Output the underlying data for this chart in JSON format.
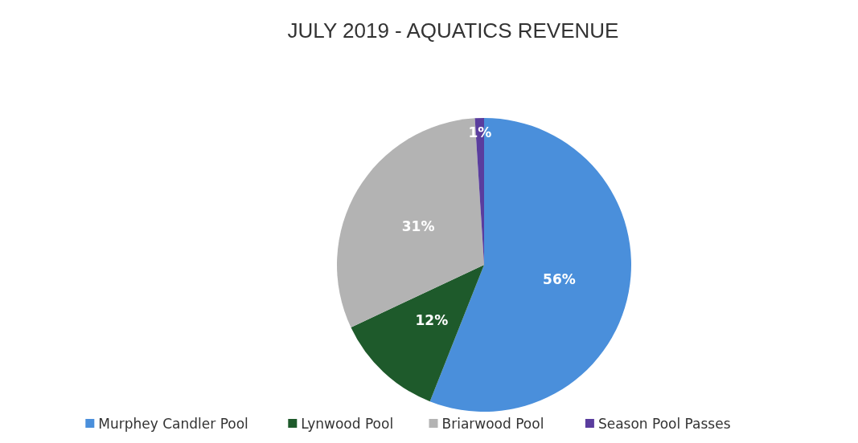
{
  "chart_data": {
    "type": "pie",
    "title": "JULY 2019 - AQUATICS REVENUE",
    "categories": [
      "Murphey Candler Pool",
      "Lynwood Pool",
      "Briarwood Pool",
      "Season Pool Passes"
    ],
    "values": [
      56,
      12,
      31,
      1
    ],
    "colors": [
      "#4a8fdb",
      "#1e5a2b",
      "#b3b3b3",
      "#5a3d9e"
    ],
    "value_labels": [
      "56%",
      "12%",
      "31%",
      "1%"
    ],
    "legend": "bottom"
  }
}
